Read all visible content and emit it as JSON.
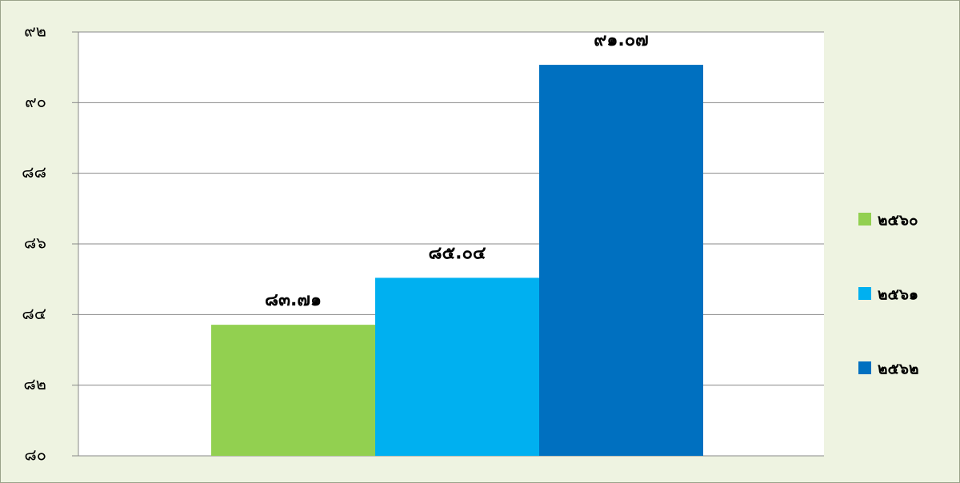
{
  "chart_data": {
    "type": "bar",
    "series": [
      {
        "name": "๒๕๖๐",
        "color": "#92d050",
        "values": [
          83.71
        ],
        "value_labels": [
          "๘๓.๗๑"
        ]
      },
      {
        "name": "๒๕๖๑",
        "color": "#00b0f0",
        "values": [
          85.04
        ],
        "value_labels": [
          "๘๕.๐๔"
        ]
      },
      {
        "name": "๒๕๖๒",
        "color": "#0070c0",
        "values": [
          91.07
        ],
        "value_labels": [
          "๙๑.๐๗"
        ]
      }
    ],
    "ylim": [
      80,
      92
    ],
    "yticks": [
      {
        "value": 80,
        "label": "๘๐"
      },
      {
        "value": 82,
        "label": "๘๒"
      },
      {
        "value": 84,
        "label": "๘๔"
      },
      {
        "value": 86,
        "label": "๘๖"
      },
      {
        "value": 88,
        "label": "๘๘"
      },
      {
        "value": 90,
        "label": "๙๐"
      },
      {
        "value": 92,
        "label": "๙๒"
      }
    ],
    "grid": true,
    "legend": "right"
  }
}
